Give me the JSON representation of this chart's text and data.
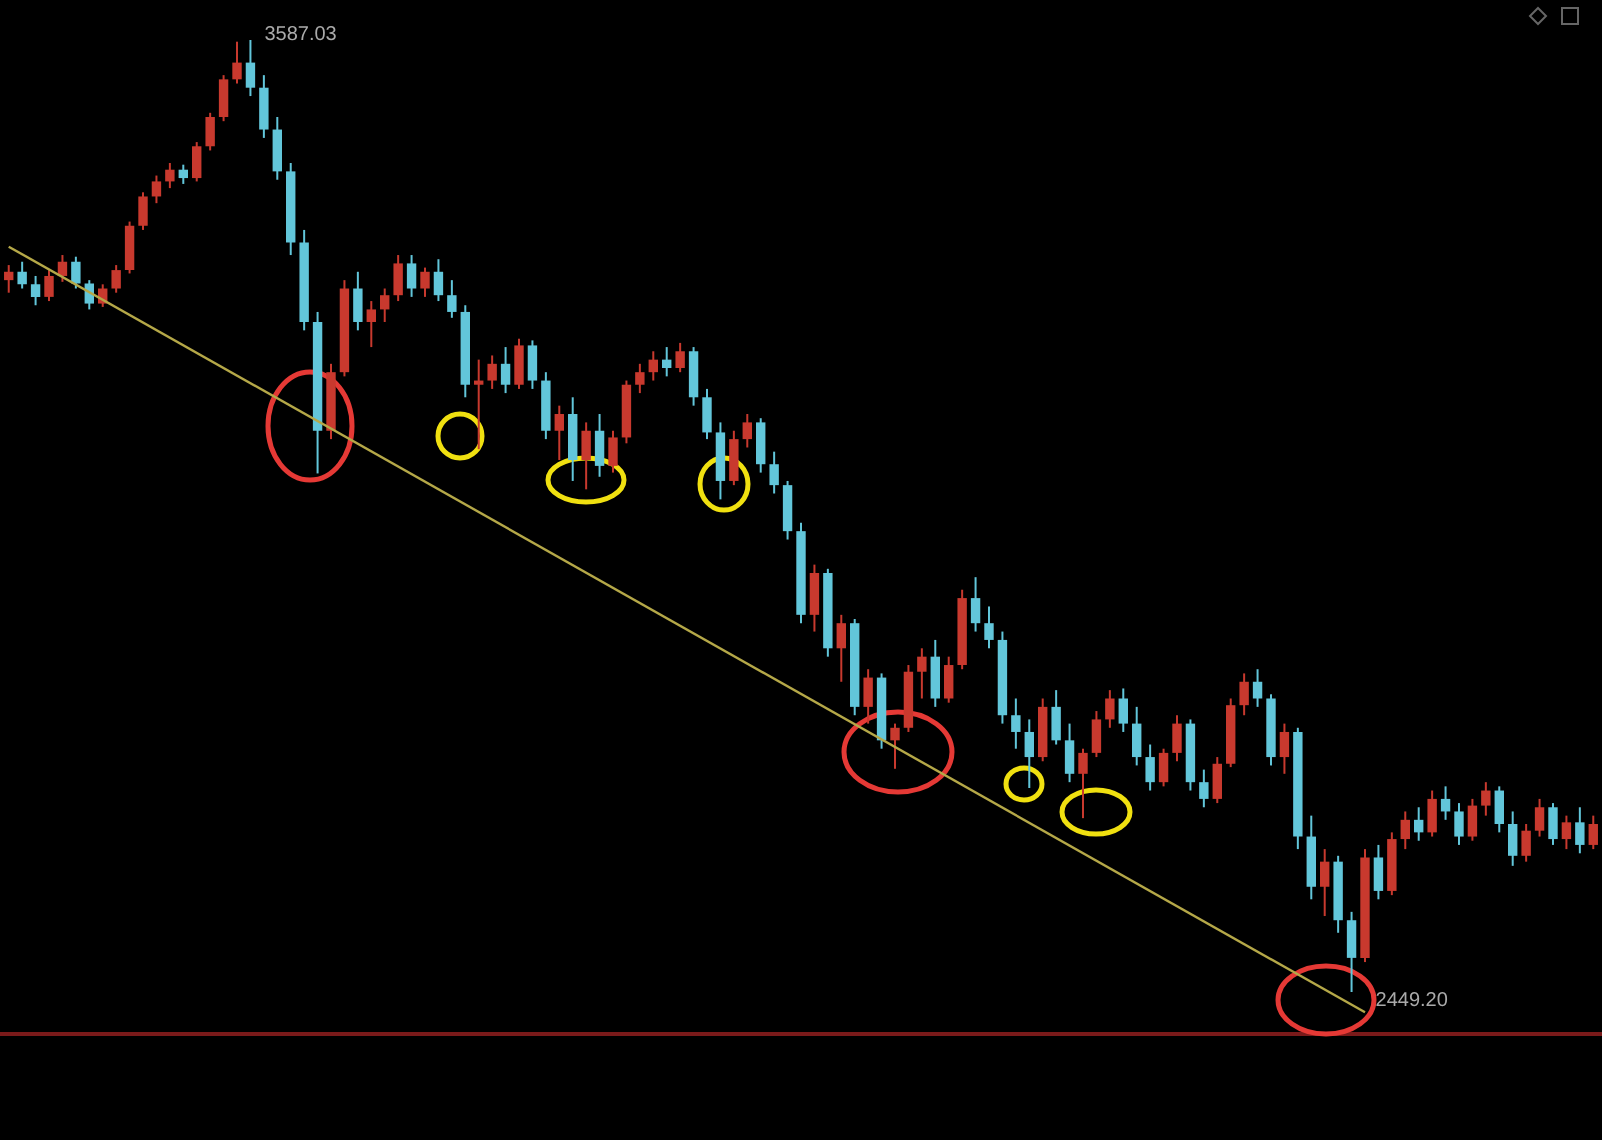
{
  "chart_data": {
    "type": "candlestick",
    "tick_labels": false,
    "colors": [
      "#c8392e",
      "#62c6da",
      "#62c6da",
      "#c8392e",
      "#c8392e",
      "#62c6da",
      "#62c6da",
      "#c8392e",
      "#c8392e",
      "#c8392e",
      "#c8392e",
      "#c8392e",
      "#c8392e",
      "#62c6da",
      "#c8392e",
      "#c8392e",
      "#c8392e",
      "#c8392e",
      "#62c6da",
      "#62c6da",
      "#62c6da",
      "#62c6da",
      "#62c6da",
      "#62c6da",
      "#c8392e",
      "#c8392e",
      "#62c6da",
      "#c8392e",
      "#c8392e",
      "#c8392e",
      "#62c6da",
      "#c8392e",
      "#62c6da",
      "#62c6da",
      "#62c6da",
      "#c8392e",
      "#c8392e",
      "#62c6da",
      "#c8392e",
      "#62c6da",
      "#62c6da",
      "#c8392e",
      "#62c6da",
      "#c8392e",
      "#62c6da",
      "#c8392e",
      "#c8392e",
      "#c8392e",
      "#c8392e",
      "#62c6da",
      "#c8392e",
      "#62c6da",
      "#62c6da",
      "#62c6da",
      "#c8392e",
      "#c8392e",
      "#62c6da",
      "#62c6da",
      "#62c6da",
      "#62c6da",
      "#c8392e",
      "#62c6da",
      "#c8392e",
      "#62c6da",
      "#c8392e",
      "#62c6da",
      "#c8392e",
      "#c8392e",
      "#c8392e",
      "#62c6da",
      "#c8392e",
      "#c8392e",
      "#62c6da",
      "#62c6da",
      "#62c6da",
      "#62c6da",
      "#62c6da",
      "#c8392e",
      "#62c6da",
      "#62c6da",
      "#c8392e",
      "#c8392e",
      "#c8392e",
      "#62c6da",
      "#62c6da",
      "#62c6da",
      "#c8392e",
      "#c8392e",
      "#62c6da",
      "#62c6da",
      "#c8392e",
      "#c8392e",
      "#c8392e",
      "#62c6da",
      "#62c6da",
      "#c8392e",
      "#62c6da",
      "#62c6da",
      "#c8392e",
      "#62c6da",
      "#62c6da",
      "#c8392e",
      "#62c6da",
      "#c8392e",
      "#c8392e",
      "#62c6da",
      "#c8392e",
      "#62c6da",
      "#62c6da",
      "#c8392e",
      "#c8392e",
      "#62c6da",
      "#62c6da",
      "#c8392e",
      "#c8392e",
      "#62c6da",
      "#c8392e",
      "#62c6da",
      "#c8392e"
    ],
    "categories": [
      null,
      null,
      null,
      null,
      null,
      null,
      null,
      null,
      null,
      null,
      null,
      null,
      null,
      null,
      null,
      null,
      null,
      null,
      null,
      null,
      null,
      null,
      null,
      null,
      null,
      null,
      null,
      null,
      null,
      null,
      null,
      null,
      null,
      null,
      null,
      null,
      null,
      null,
      null,
      null,
      null,
      null,
      null,
      null,
      null,
      null,
      null,
      null,
      null,
      null,
      null,
      null,
      null,
      null,
      null,
      null,
      null,
      null,
      null,
      null,
      null,
      null,
      null,
      null,
      null,
      null,
      null,
      null,
      null,
      null,
      null,
      null,
      null,
      null,
      null,
      null,
      null,
      null,
      null,
      null,
      null,
      null,
      null,
      null,
      null,
      null,
      null,
      null,
      null,
      null,
      null,
      null,
      null,
      null,
      null,
      null,
      null,
      null,
      null,
      null,
      null,
      null,
      null,
      null,
      null,
      null,
      null,
      null,
      null,
      null,
      null,
      null,
      null,
      null,
      null,
      null,
      null,
      null,
      null
    ],
    "ohlc": [
      [
        3300,
        3318,
        3285,
        3310
      ],
      [
        3310,
        3322,
        3290,
        3295
      ],
      [
        3295,
        3305,
        3270,
        3280
      ],
      [
        3280,
        3312,
        3275,
        3305
      ],
      [
        3305,
        3330,
        3298,
        3322
      ],
      [
        3322,
        3328,
        3290,
        3296
      ],
      [
        3296,
        3300,
        3265,
        3272
      ],
      [
        3272,
        3295,
        3268,
        3290
      ],
      [
        3290,
        3318,
        3285,
        3312
      ],
      [
        3312,
        3370,
        3308,
        3365
      ],
      [
        3365,
        3405,
        3360,
        3400
      ],
      [
        3400,
        3425,
        3392,
        3418
      ],
      [
        3418,
        3440,
        3410,
        3432
      ],
      [
        3432,
        3438,
        3415,
        3422
      ],
      [
        3422,
        3465,
        3418,
        3460
      ],
      [
        3460,
        3500,
        3455,
        3495
      ],
      [
        3495,
        3545,
        3490,
        3540
      ],
      [
        3540,
        3585,
        3535,
        3560
      ],
      [
        3560,
        3587.03,
        3520,
        3530
      ],
      [
        3530,
        3545,
        3470,
        3480
      ],
      [
        3480,
        3495,
        3420,
        3430
      ],
      [
        3430,
        3440,
        3330,
        3345
      ],
      [
        3345,
        3360,
        3240,
        3250
      ],
      [
        3250,
        3262,
        3069,
        3120
      ],
      [
        3120,
        3200,
        3110,
        3190
      ],
      [
        3190,
        3300,
        3185,
        3290
      ],
      [
        3290,
        3310,
        3240,
        3250
      ],
      [
        3250,
        3275,
        3220,
        3265
      ],
      [
        3265,
        3290,
        3250,
        3282
      ],
      [
        3282,
        3330,
        3275,
        3320
      ],
      [
        3320,
        3330,
        3280,
        3290
      ],
      [
        3290,
        3315,
        3280,
        3310
      ],
      [
        3310,
        3325,
        3275,
        3282
      ],
      [
        3282,
        3300,
        3255,
        3262
      ],
      [
        3262,
        3270,
        3160,
        3175
      ],
      [
        3175,
        3205,
        3098,
        3180
      ],
      [
        3180,
        3210,
        3170,
        3200
      ],
      [
        3200,
        3220,
        3165,
        3175
      ],
      [
        3175,
        3230,
        3170,
        3222
      ],
      [
        3222,
        3228,
        3170,
        3180
      ],
      [
        3180,
        3190,
        3110,
        3120
      ],
      [
        3120,
        3150,
        3085,
        3140
      ],
      [
        3140,
        3160,
        3060,
        3085
      ],
      [
        3085,
        3130,
        3050,
        3120
      ],
      [
        3120,
        3140,
        3065,
        3078
      ],
      [
        3078,
        3120,
        3070,
        3112
      ],
      [
        3112,
        3180,
        3105,
        3175
      ],
      [
        3175,
        3200,
        3165,
        3190
      ],
      [
        3190,
        3215,
        3180,
        3205
      ],
      [
        3205,
        3220,
        3185,
        3195
      ],
      [
        3195,
        3225,
        3190,
        3215
      ],
      [
        3215,
        3220,
        3150,
        3160
      ],
      [
        3160,
        3170,
        3110,
        3118
      ],
      [
        3118,
        3130,
        3038,
        3060
      ],
      [
        3060,
        3120,
        3055,
        3110
      ],
      [
        3110,
        3140,
        3100,
        3130
      ],
      [
        3130,
        3135,
        3070,
        3080
      ],
      [
        3080,
        3095,
        3045,
        3055
      ],
      [
        3055,
        3060,
        2990,
        3000
      ],
      [
        3000,
        3010,
        2890,
        2900
      ],
      [
        2900,
        2960,
        2880,
        2950
      ],
      [
        2950,
        2955,
        2850,
        2860
      ],
      [
        2860,
        2900,
        2820,
        2890
      ],
      [
        2890,
        2895,
        2780,
        2790
      ],
      [
        2790,
        2835,
        2770,
        2825
      ],
      [
        2825,
        2830,
        2740,
        2750
      ],
      [
        2750,
        2770,
        2716,
        2765
      ],
      [
        2765,
        2840,
        2760,
        2832
      ],
      [
        2832,
        2860,
        2800,
        2850
      ],
      [
        2850,
        2870,
        2790,
        2800
      ],
      [
        2800,
        2850,
        2795,
        2840
      ],
      [
        2840,
        2930,
        2835,
        2920
      ],
      [
        2920,
        2945,
        2880,
        2890
      ],
      [
        2890,
        2910,
        2860,
        2870
      ],
      [
        2870,
        2880,
        2770,
        2780
      ],
      [
        2780,
        2800,
        2740,
        2760
      ],
      [
        2760,
        2775,
        2693,
        2730
      ],
      [
        2730,
        2800,
        2725,
        2790
      ],
      [
        2790,
        2810,
        2745,
        2750
      ],
      [
        2750,
        2770,
        2700,
        2710
      ],
      [
        2710,
        2740,
        2657,
        2735
      ],
      [
        2735,
        2785,
        2730,
        2775
      ],
      [
        2775,
        2810,
        2765,
        2800
      ],
      [
        2800,
        2812,
        2760,
        2770
      ],
      [
        2770,
        2790,
        2720,
        2730
      ],
      [
        2730,
        2745,
        2690,
        2700
      ],
      [
        2700,
        2740,
        2695,
        2735
      ],
      [
        2735,
        2780,
        2725,
        2770
      ],
      [
        2770,
        2775,
        2690,
        2700
      ],
      [
        2700,
        2715,
        2670,
        2680
      ],
      [
        2680,
        2730,
        2675,
        2722
      ],
      [
        2722,
        2800,
        2718,
        2792
      ],
      [
        2792,
        2830,
        2780,
        2820
      ],
      [
        2820,
        2835,
        2790,
        2800
      ],
      [
        2800,
        2805,
        2720,
        2730
      ],
      [
        2730,
        2770,
        2710,
        2760
      ],
      [
        2760,
        2765,
        2620,
        2635
      ],
      [
        2635,
        2660,
        2560,
        2575
      ],
      [
        2575,
        2620,
        2540,
        2605
      ],
      [
        2605,
        2612,
        2520,
        2535
      ],
      [
        2535,
        2545,
        2449.2,
        2490
      ],
      [
        2490,
        2620,
        2485,
        2610
      ],
      [
        2610,
        2625,
        2560,
        2570
      ],
      [
        2570,
        2640,
        2565,
        2632
      ],
      [
        2632,
        2665,
        2620,
        2655
      ],
      [
        2655,
        2670,
        2630,
        2640
      ],
      [
        2640,
        2690,
        2635,
        2680
      ],
      [
        2680,
        2695,
        2655,
        2665
      ],
      [
        2665,
        2675,
        2625,
        2635
      ],
      [
        2635,
        2680,
        2630,
        2672
      ],
      [
        2672,
        2700,
        2660,
        2690
      ],
      [
        2690,
        2695,
        2640,
        2650
      ],
      [
        2650,
        2665,
        2600,
        2612
      ],
      [
        2612,
        2650,
        2605,
        2642
      ],
      [
        2642,
        2680,
        2635,
        2670
      ],
      [
        2670,
        2675,
        2625,
        2632
      ],
      [
        2632,
        2660,
        2620,
        2652
      ],
      [
        2652,
        2670,
        2615,
        2625
      ],
      [
        2625,
        2660,
        2620,
        2650
      ]
    ],
    "series": [
      {
        "type": "line",
        "color": "#b5a848",
        "values": [
          3340,
          null,
          null,
          null,
          null,
          null,
          null,
          null,
          null,
          null,
          null,
          null,
          null,
          null,
          null,
          null,
          null,
          null,
          null,
          null,
          null,
          null,
          null,
          null,
          null,
          null,
          null,
          null,
          null,
          null,
          null,
          null,
          null,
          null,
          null,
          null,
          null,
          null,
          null,
          null,
          null,
          null,
          null,
          null,
          null,
          null,
          null,
          null,
          null,
          null,
          null,
          null,
          null,
          null,
          null,
          null,
          null,
          null,
          null,
          null,
          null,
          null,
          null,
          null,
          null,
          null,
          null,
          null,
          null,
          null,
          null,
          null,
          null,
          null,
          null,
          null,
          null,
          null,
          null,
          null,
          null,
          null,
          null,
          null,
          null,
          null,
          null,
          null,
          null,
          null,
          null,
          null,
          null,
          null,
          null,
          null,
          null,
          null,
          null,
          null,
          null,
          2425,
          null,
          null,
          null,
          null,
          null,
          null,
          null,
          null,
          null,
          null,
          null,
          null,
          null,
          null,
          null,
          null,
          null
        ]
      }
    ],
    "annotations": [
      "3587.03",
      "2449.20"
    ]
  }
}
